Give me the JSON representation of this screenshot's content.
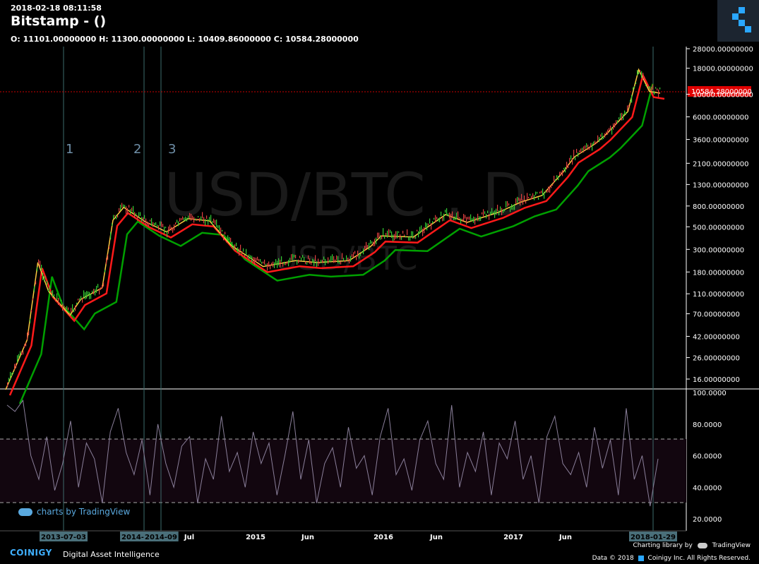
{
  "header": {
    "timestamp": "2018-02-18 08:11:58",
    "title": "Bitstamp -  ()",
    "ohlc": "O: 11101.00000000 H: 11300.00000000 L: 10409.86000000 C: 10584.28000000"
  },
  "watermark": {
    "main": "USD/BTC , D",
    "sub": "USD/BTC"
  },
  "tv_badge": "charts by TradingView",
  "footer": {
    "brand": "COINIGY",
    "tagline": "Digital Asset Intelligence",
    "charting_lib": "Charting library by",
    "tradingview": "TradingView",
    "copyright": "Data © 2018",
    "company": "Coinigy Inc. All Rights Reserved."
  },
  "colors": {
    "background": "#000000",
    "price_line": "#cc0000",
    "ma_fast": "#ffcc33",
    "ma_mid": "#ff0000",
    "ma_slow": "#00aa00",
    "rsi": "#8a7f9a",
    "rsi_band": "#1a0a1a",
    "brand": "#3fb0ff"
  },
  "chart_data": [
    {
      "type": "line",
      "scale": "log",
      "series": [
        {
          "x": [
            "2013-01",
            "2013-03",
            "2013-04",
            "2013-05",
            "2013-07",
            "2013-08",
            "2013-10",
            "2013-11",
            "2013-12",
            "2014-02",
            "2014-04",
            "2014-06",
            "2014-08",
            "2014-10",
            "2015-01",
            "2015-04",
            "2015-06",
            "2015-09",
            "2015-11",
            "2015-12",
            "2016-03",
            "2016-06",
            "2016-08",
            "2016-11",
            "2017-01",
            "2017-03",
            "2017-05",
            "2017-06",
            "2017-08",
            "2017-09",
            "2017-11",
            "2017-12",
            "2018-01",
            "2018-02"
          ],
          "values": [
            13,
            40,
            230,
            120,
            70,
            100,
            130,
            600,
            800,
            580,
            460,
            620,
            590,
            340,
            210,
            240,
            230,
            240,
            330,
            420,
            410,
            680,
            570,
            720,
            900,
            1050,
            1800,
            2500,
            3400,
            4200,
            7000,
            18000,
            11000,
            10584
          ]
        }
      ],
      "current_price_label": "10584.28000000",
      "y_ticks": [
        "28000.00000000",
        "18000.00000000",
        "10000.00000000",
        "6000.00000000",
        "3600.00000000",
        "2100.00000000",
        "1300.00000000",
        "800.00000000",
        "500.00000000",
        "300.00000000",
        "180.00000000",
        "110.00000000",
        "70.00000000",
        "42.00000000",
        "26.00000000",
        "16.00000000"
      ],
      "x_ticks": [
        "2013-07-03",
        "2014-02-23",
        "2014-09",
        "Jul",
        "2015",
        "Jun",
        "2016",
        "Jun",
        "2017",
        "Jun",
        "2018-01-29"
      ],
      "event_markers": [
        "1",
        "2",
        "3"
      ]
    },
    {
      "type": "line",
      "ylim": [
        20,
        100
      ],
      "y_ticks": [
        "100.0000",
        "80.0000",
        "60.0000",
        "40.0000",
        "20.0000"
      ],
      "band": [
        30,
        70
      ],
      "series": [
        {
          "values": [
            92,
            88,
            95,
            60,
            45,
            72,
            38,
            55,
            82,
            40,
            68,
            58,
            30,
            75,
            90,
            62,
            48,
            70,
            35,
            80,
            55,
            40,
            66,
            72,
            30,
            58,
            45,
            85,
            50,
            62,
            40,
            75,
            55,
            68,
            35,
            60,
            88,
            45,
            70,
            30,
            55,
            65,
            40,
            78,
            52,
            60,
            35,
            72,
            90,
            48,
            58,
            38,
            70,
            82,
            55,
            45,
            92,
            40,
            62,
            50,
            75,
            35,
            68,
            58,
            82,
            45,
            60,
            30,
            72,
            85,
            55,
            48,
            62,
            40,
            78,
            52,
            70,
            35,
            90,
            45,
            60,
            28,
            58
          ]
        }
      ]
    }
  ]
}
